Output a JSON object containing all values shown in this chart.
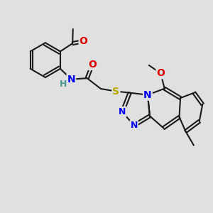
{
  "background_color": "#e0e0e0",
  "bond_color": "#1a1a1a",
  "bond_width": 1.5,
  "dbo": 0.07,
  "atom_colors": {
    "O": "#dd0000",
    "N": "#0000ee",
    "S": "#bbaa00",
    "H": "#449999",
    "C": "#1a1a1a"
  },
  "fs": 9
}
